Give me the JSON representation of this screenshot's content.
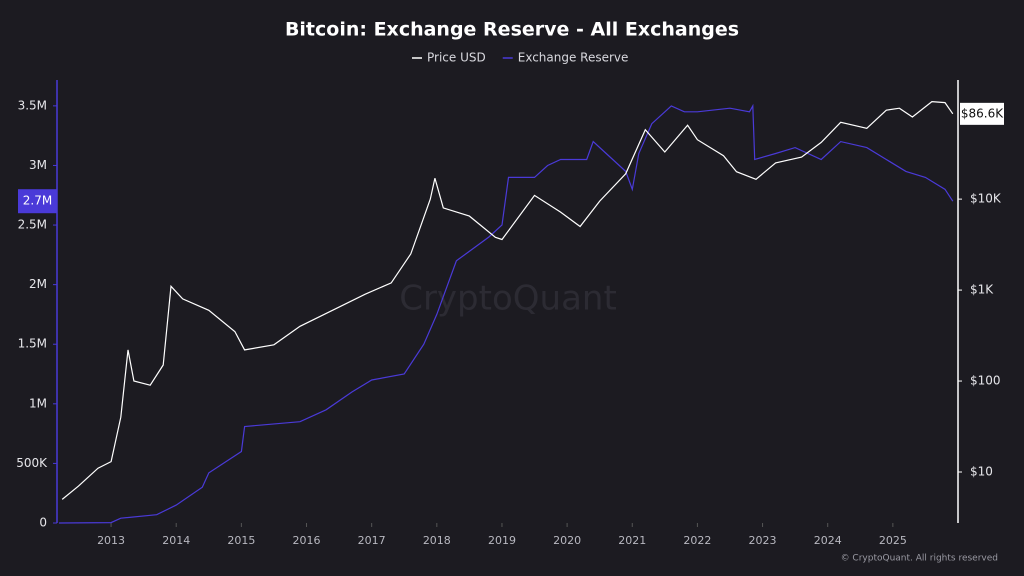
{
  "chart_data": {
    "type": "line",
    "title": "Bitcoin: Exchange Reserve - All Exchanges",
    "watermark": "CryptoQuant",
    "footer": "© CryptoQuant. All rights reserved",
    "xlim": [
      2012.17,
      2026.0
    ],
    "xticks": [
      2013,
      2014,
      2015,
      2016,
      2017,
      2018,
      2019,
      2020,
      2021,
      2022,
      2023,
      2024,
      2025
    ],
    "ylim": [
      0,
      3717000
    ],
    "yticks": [
      0,
      {
        "value": 500000,
        "label": "500K"
      },
      {
        "value": 1000000,
        "label": "1M"
      },
      {
        "value": 1500000,
        "label": "1.5M"
      },
      {
        "value": 2000000,
        "label": "2M"
      },
      {
        "value": 2500000,
        "label": "2.5M"
      },
      {
        "value": 3000000,
        "label": "3M"
      },
      {
        "value": 3500000,
        "label": "3.5M"
      }
    ],
    "y2lim": [
      2.75,
      204000
    ],
    "y2log": true,
    "y2ticks": [
      {
        "value": 10,
        "label": "$10"
      },
      {
        "value": 100,
        "label": "$100"
      },
      {
        "value": 1000,
        "label": "$1K"
      },
      {
        "value": 10000,
        "label": "$10K"
      }
    ],
    "series": [
      {
        "name": "Price USD",
        "color": "#ffffff",
        "axis": "y2",
        "x": [
          2012.25,
          2012.5,
          2012.8,
          2013.0,
          2013.15,
          2013.26,
          2013.35,
          2013.6,
          2013.8,
          2013.92,
          2014.1,
          2014.5,
          2014.9,
          2015.05,
          2015.5,
          2015.9,
          2016.5,
          2016.9,
          2017.3,
          2017.6,
          2017.9,
          2017.97,
          2018.1,
          2018.5,
          2018.9,
          2019.0,
          2019.5,
          2019.9,
          2020.2,
          2020.5,
          2020.9,
          2021.2,
          2021.5,
          2021.85,
          2022.0,
          2022.4,
          2022.6,
          2022.9,
          2023.2,
          2023.6,
          2023.9,
          2024.2,
          2024.6,
          2024.9,
          2025.1,
          2025.3,
          2025.6,
          2025.8,
          2025.92
        ],
        "values": [
          5,
          7,
          11,
          13,
          40,
          220,
          100,
          90,
          150,
          1100,
          800,
          600,
          350,
          220,
          250,
          400,
          650,
          900,
          1200,
          2500,
          10000,
          17000,
          8000,
          6500,
          3800,
          3600,
          11000,
          7200,
          5000,
          9500,
          19000,
          58000,
          33000,
          65000,
          45000,
          30000,
          20000,
          16500,
          25000,
          29000,
          42000,
          70000,
          60000,
          95000,
          100000,
          80000,
          118000,
          115000,
          86600
        ],
        "value_labels": [
          null,
          null,
          null,
          null,
          null,
          null,
          null,
          null,
          null,
          null,
          null,
          null,
          null,
          null,
          null,
          null,
          null,
          null,
          null,
          null,
          null,
          null,
          null,
          null,
          null,
          null,
          null,
          null,
          null,
          null,
          null,
          null,
          null,
          null,
          null,
          null,
          null,
          null,
          null,
          null,
          null,
          null,
          null,
          null,
          null,
          null,
          null,
          null,
          "$86.6K"
        ]
      },
      {
        "name": "Exchange Reserve",
        "color": "#4a3ad8",
        "axis": "y",
        "x": [
          2012.2,
          2013.0,
          2013.15,
          2013.7,
          2014.0,
          2014.4,
          2014.5,
          2015.0,
          2015.05,
          2015.9,
          2016.3,
          2016.7,
          2017.0,
          2017.5,
          2017.8,
          2018.0,
          2018.3,
          2018.8,
          2019.0,
          2019.1,
          2019.5,
          2019.7,
          2019.9,
          2020.3,
          2020.4,
          2020.6,
          2020.9,
          2021.0,
          2021.1,
          2021.3,
          2021.6,
          2021.8,
          2022.0,
          2022.5,
          2022.8,
          2022.85,
          2022.88,
          2023.2,
          2023.5,
          2023.9,
          2024.2,
          2024.6,
          2024.9,
          2025.2,
          2025.5,
          2025.8,
          2025.92
        ],
        "values": [
          0,
          3000,
          40000,
          70000,
          150000,
          300000,
          420000,
          600000,
          810000,
          850000,
          950000,
          1100000,
          1200000,
          1250000,
          1500000,
          1750000,
          2200000,
          2400000,
          2500000,
          2900000,
          2900000,
          3000000,
          3050000,
          3050000,
          3200000,
          3100000,
          2950000,
          2800000,
          3100000,
          3350000,
          3500000,
          3450000,
          3450000,
          3480000,
          3450000,
          3500000,
          3050000,
          3100000,
          3150000,
          3050000,
          3200000,
          3150000,
          3050000,
          2950000,
          2900000,
          2800000,
          2700000
        ],
        "value_labels": [
          null,
          null,
          null,
          null,
          null,
          null,
          null,
          null,
          null,
          null,
          null,
          null,
          null,
          null,
          null,
          null,
          null,
          null,
          null,
          null,
          null,
          null,
          null,
          null,
          null,
          null,
          null,
          null,
          null,
          null,
          null,
          null,
          null,
          null,
          null,
          null,
          null,
          null,
          null,
          null,
          null,
          null,
          null,
          null,
          null,
          null,
          "2.7M"
        ]
      }
    ]
  }
}
